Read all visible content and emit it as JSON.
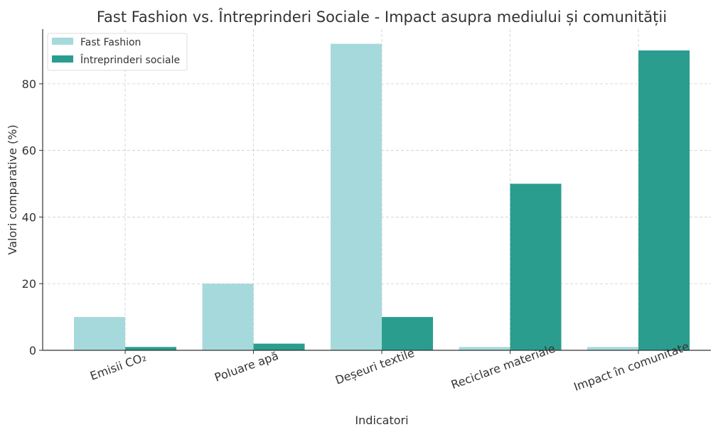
{
  "chart_data": {
    "type": "bar",
    "title": "Fast Fashion vs. Întreprinderi Sociale - Impact asupra mediului și comunității",
    "xlabel": "Indicatori",
    "ylabel": "Valori comparative (%)",
    "categories": [
      "Emisii CO₂",
      "Poluare apă",
      "Deșeuri textile",
      "Reciclare materiale",
      "Impact în comunitate"
    ],
    "series": [
      {
        "name": "Fast Fashion",
        "color": "#a6d9dc",
        "values": [
          10,
          20,
          92,
          1,
          1
        ]
      },
      {
        "name": "Întreprinderi sociale",
        "color": "#2a9d8f",
        "values": [
          1,
          2,
          10,
          50,
          90
        ]
      }
    ],
    "ylim": [
      0,
      96.4
    ],
    "yticks": [
      0,
      20,
      40,
      60,
      80
    ],
    "grid": true,
    "legend": "top-left"
  }
}
